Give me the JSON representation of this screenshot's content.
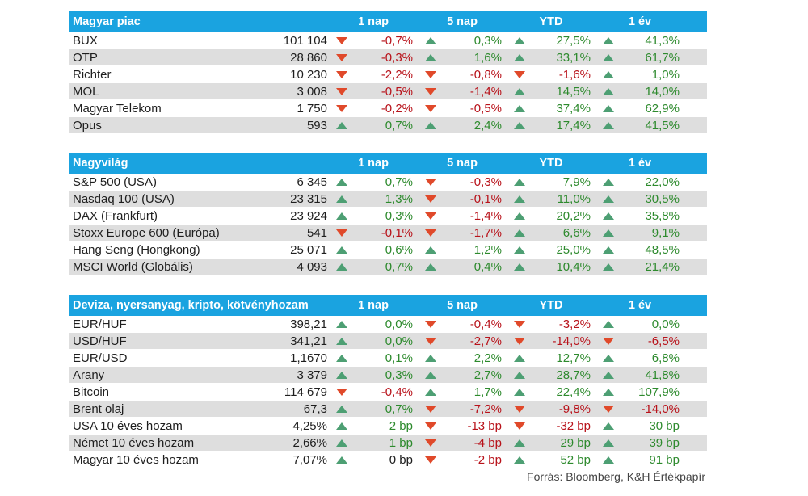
{
  "columns": [
    "1 nap",
    "5 nap",
    "YTD",
    "1 év"
  ],
  "sections": [
    {
      "title": "Magyar piac",
      "rows": [
        {
          "name": "BUX",
          "value": "101 104",
          "changes": [
            {
              "dir": "down",
              "text": "-0,7%"
            },
            {
              "dir": "up",
              "text": "0,3%"
            },
            {
              "dir": "up",
              "text": "27,5%"
            },
            {
              "dir": "up",
              "text": "41,3%"
            }
          ]
        },
        {
          "name": "OTP",
          "value": "28 860",
          "changes": [
            {
              "dir": "down",
              "text": "-0,3%"
            },
            {
              "dir": "up",
              "text": "1,6%"
            },
            {
              "dir": "up",
              "text": "33,1%"
            },
            {
              "dir": "up",
              "text": "61,7%"
            }
          ]
        },
        {
          "name": "Richter",
          "value": "10 230",
          "changes": [
            {
              "dir": "down",
              "text": "-2,2%"
            },
            {
              "dir": "down",
              "text": "-0,8%"
            },
            {
              "dir": "down",
              "text": "-1,6%"
            },
            {
              "dir": "up",
              "text": "1,0%"
            }
          ]
        },
        {
          "name": "MOL",
          "value": "3 008",
          "changes": [
            {
              "dir": "down",
              "text": "-0,5%"
            },
            {
              "dir": "down",
              "text": "-1,4%"
            },
            {
              "dir": "up",
              "text": "14,5%"
            },
            {
              "dir": "up",
              "text": "14,0%"
            }
          ]
        },
        {
          "name": "Magyar Telekom",
          "value": "1 750",
          "changes": [
            {
              "dir": "down",
              "text": "-0,2%"
            },
            {
              "dir": "down",
              "text": "-0,5%"
            },
            {
              "dir": "up",
              "text": "37,4%"
            },
            {
              "dir": "up",
              "text": "62,9%"
            }
          ]
        },
        {
          "name": "Opus",
          "value": "593",
          "changes": [
            {
              "dir": "up",
              "text": "0,7%"
            },
            {
              "dir": "up",
              "text": "2,4%"
            },
            {
              "dir": "up",
              "text": "17,4%"
            },
            {
              "dir": "up",
              "text": "41,5%"
            }
          ]
        }
      ]
    },
    {
      "title": "Nagyvilág",
      "rows": [
        {
          "name": "S&P 500 (USA)",
          "value": "6 345",
          "changes": [
            {
              "dir": "up",
              "text": "0,7%"
            },
            {
              "dir": "down",
              "text": "-0,3%"
            },
            {
              "dir": "up",
              "text": "7,9%"
            },
            {
              "dir": "up",
              "text": "22,0%"
            }
          ]
        },
        {
          "name": "Nasdaq 100 (USA)",
          "value": "23 315",
          "changes": [
            {
              "dir": "up",
              "text": "1,3%"
            },
            {
              "dir": "down",
              "text": "-0,1%"
            },
            {
              "dir": "up",
              "text": "11,0%"
            },
            {
              "dir": "up",
              "text": "30,5%"
            }
          ]
        },
        {
          "name": "DAX (Frankfurt)",
          "value": "23 924",
          "changes": [
            {
              "dir": "up",
              "text": "0,3%"
            },
            {
              "dir": "down",
              "text": "-1,4%"
            },
            {
              "dir": "up",
              "text": "20,2%"
            },
            {
              "dir": "up",
              "text": "35,8%"
            }
          ]
        },
        {
          "name": "Stoxx Europe 600 (Európa)",
          "value": "541",
          "changes": [
            {
              "dir": "down",
              "text": "-0,1%"
            },
            {
              "dir": "down",
              "text": "-1,7%"
            },
            {
              "dir": "up",
              "text": "6,6%"
            },
            {
              "dir": "up",
              "text": "9,1%"
            }
          ]
        },
        {
          "name": "Hang Seng (Hongkong)",
          "value": "25 071",
          "changes": [
            {
              "dir": "up",
              "text": "0,6%"
            },
            {
              "dir": "up",
              "text": "1,2%"
            },
            {
              "dir": "up",
              "text": "25,0%"
            },
            {
              "dir": "up",
              "text": "48,5%"
            }
          ]
        },
        {
          "name": "MSCI World (Globális)",
          "value": "4 093",
          "changes": [
            {
              "dir": "up",
              "text": "0,7%"
            },
            {
              "dir": "up",
              "text": "0,4%"
            },
            {
              "dir": "up",
              "text": "10,4%"
            },
            {
              "dir": "up",
              "text": "21,4%"
            }
          ]
        }
      ]
    },
    {
      "title": "Deviza, nyersanyag, kripto, kötvényhozam",
      "rows": [
        {
          "name": "EUR/HUF",
          "value": "398,21",
          "changes": [
            {
              "dir": "up",
              "text": "0,0%"
            },
            {
              "dir": "down",
              "text": "-0,4%"
            },
            {
              "dir": "down",
              "text": "-3,2%"
            },
            {
              "dir": "up",
              "text": "0,0%"
            }
          ]
        },
        {
          "name": "USD/HUF",
          "value": "341,21",
          "changes": [
            {
              "dir": "up",
              "text": "0,0%"
            },
            {
              "dir": "down",
              "text": "-2,7%"
            },
            {
              "dir": "down",
              "text": "-14,0%"
            },
            {
              "dir": "down",
              "text": "-6,5%"
            }
          ]
        },
        {
          "name": "EUR/USD",
          "value": "1,1670",
          "changes": [
            {
              "dir": "up",
              "text": "0,1%"
            },
            {
              "dir": "up",
              "text": "2,2%"
            },
            {
              "dir": "up",
              "text": "12,7%"
            },
            {
              "dir": "up",
              "text": "6,8%"
            }
          ]
        },
        {
          "name": "Arany",
          "value": "3 379",
          "changes": [
            {
              "dir": "up",
              "text": "0,3%"
            },
            {
              "dir": "up",
              "text": "2,7%"
            },
            {
              "dir": "up",
              "text": "28,7%"
            },
            {
              "dir": "up",
              "text": "41,8%"
            }
          ]
        },
        {
          "name": "Bitcoin",
          "value": "114 679",
          "changes": [
            {
              "dir": "down",
              "text": "-0,4%"
            },
            {
              "dir": "up",
              "text": "1,7%"
            },
            {
              "dir": "up",
              "text": "22,4%"
            },
            {
              "dir": "up",
              "text": "107,9%"
            }
          ]
        },
        {
          "name": "Brent olaj",
          "value": "67,3",
          "changes": [
            {
              "dir": "up",
              "text": "0,7%"
            },
            {
              "dir": "down",
              "text": "-7,2%"
            },
            {
              "dir": "down",
              "text": "-9,8%"
            },
            {
              "dir": "down",
              "text": "-14,0%"
            }
          ]
        },
        {
          "name": "USA 10 éves hozam",
          "value": "4,25%",
          "changes": [
            {
              "dir": "up",
              "text": "2 bp"
            },
            {
              "dir": "down",
              "text": "-13 bp"
            },
            {
              "dir": "down",
              "text": "-32 bp"
            },
            {
              "dir": "up",
              "text": "30 bp"
            }
          ]
        },
        {
          "name": "Német 10 éves hozam",
          "value": "2,66%",
          "changes": [
            {
              "dir": "up",
              "text": "1 bp"
            },
            {
              "dir": "down",
              "text": "-4 bp"
            },
            {
              "dir": "up",
              "text": "29 bp"
            },
            {
              "dir": "up",
              "text": "39 bp"
            }
          ]
        },
        {
          "name": "Magyar 10 éves hozam",
          "value": "7,07%",
          "changes": [
            {
              "dir": "up",
              "text": "0 bp",
              "neutral": true
            },
            {
              "dir": "down",
              "text": "-2 bp"
            },
            {
              "dir": "up",
              "text": "52 bp"
            },
            {
              "dir": "up",
              "text": "91 bp"
            }
          ]
        }
      ]
    }
  ],
  "source": "Forrás: Bloomberg, K&H Értékpapír",
  "colors": {
    "header": "#1aa3e0",
    "up": "#2d8a2d",
    "down": "#b8121a",
    "up_icon": "#4d9f73",
    "down_icon": "#e0492a",
    "alt_row": "#dedede"
  }
}
